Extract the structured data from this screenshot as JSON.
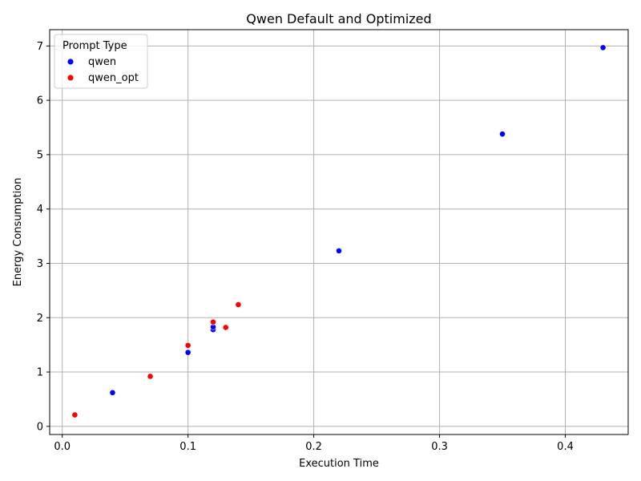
{
  "chart_data": {
    "type": "scatter",
    "title": "Qwen Default and Optimized",
    "xlabel": "Execution Time",
    "ylabel": "Energy Consumption",
    "xlim": [
      -0.01,
      0.45
    ],
    "ylim": [
      -0.15,
      7.3
    ],
    "xticks": [
      0.0,
      0.1,
      0.2,
      0.3,
      0.4
    ],
    "xtick_labels": [
      "0.0",
      "0.1",
      "0.2",
      "0.3",
      "0.4"
    ],
    "yticks": [
      0,
      1,
      2,
      3,
      4,
      5,
      6,
      7
    ],
    "ytick_labels": [
      "0",
      "1",
      "2",
      "3",
      "4",
      "5",
      "6",
      "7"
    ],
    "grid": true,
    "legend": {
      "title": "Prompt Type",
      "placement": "upper-left"
    },
    "series": [
      {
        "name": "qwen",
        "color": "#0000ff",
        "points": [
          {
            "x": 0.04,
            "y": 0.62
          },
          {
            "x": 0.1,
            "y": 1.36
          },
          {
            "x": 0.12,
            "y": 1.78
          },
          {
            "x": 0.12,
            "y": 1.83
          },
          {
            "x": 0.22,
            "y": 3.23
          },
          {
            "x": 0.35,
            "y": 5.38
          },
          {
            "x": 0.43,
            "y": 6.97
          }
        ]
      },
      {
        "name": "qwen_opt",
        "color": "#ff0000",
        "points": [
          {
            "x": 0.01,
            "y": 0.21
          },
          {
            "x": 0.07,
            "y": 0.92
          },
          {
            "x": 0.1,
            "y": 1.49
          },
          {
            "x": 0.12,
            "y": 1.92
          },
          {
            "x": 0.13,
            "y": 1.82
          },
          {
            "x": 0.14,
            "y": 2.24
          }
        ]
      }
    ]
  }
}
